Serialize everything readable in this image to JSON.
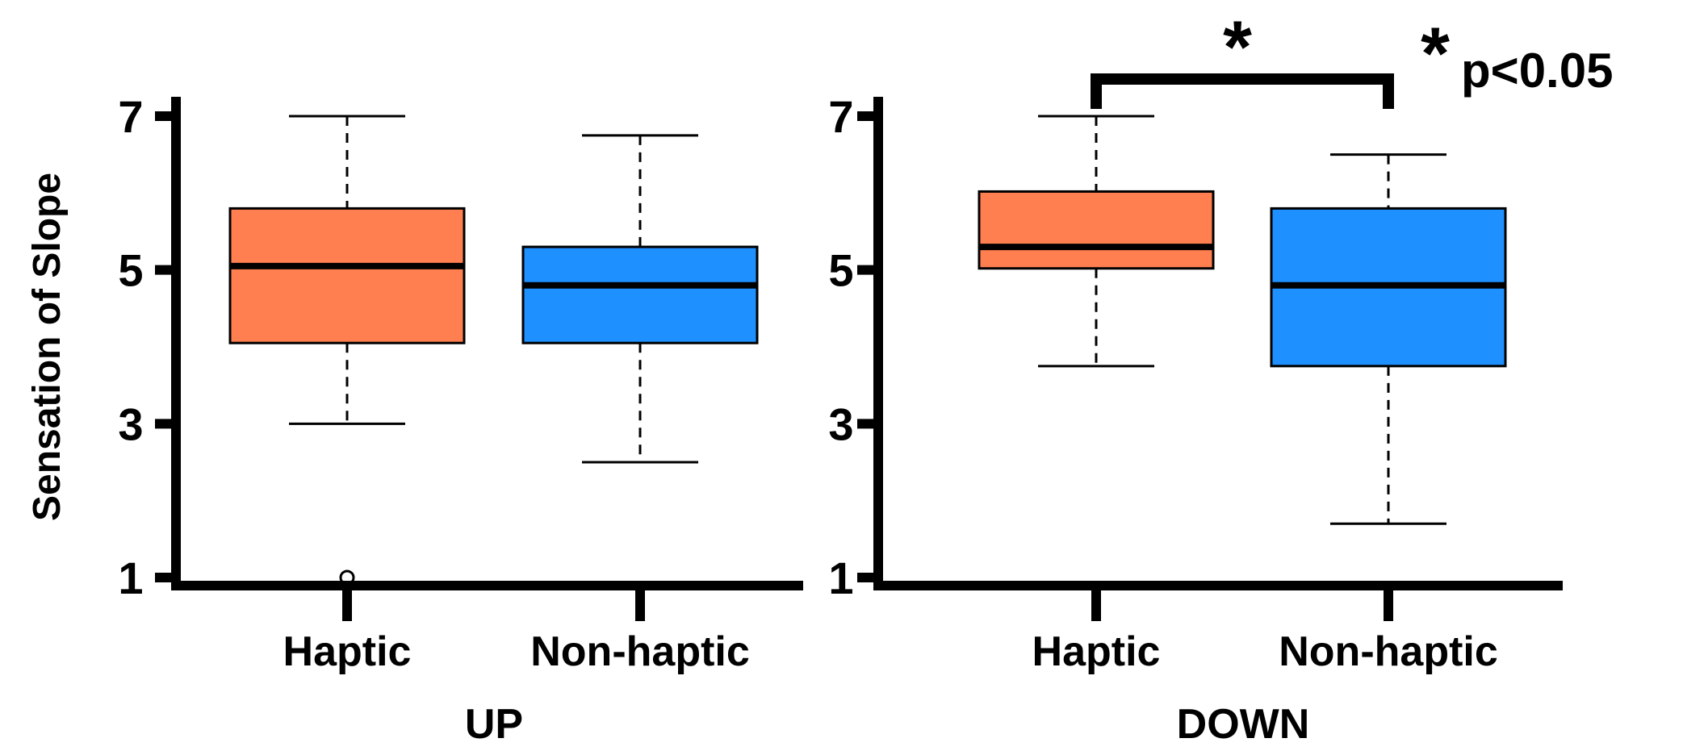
{
  "chart_data": [
    {
      "type": "boxplot",
      "title": "UP",
      "ylabel": "Sensation of Slope",
      "ylim": [
        1,
        7
      ],
      "yticks": [
        "1",
        "3",
        "5",
        "7"
      ],
      "categories": [
        "Haptic",
        "Non-haptic"
      ],
      "boxes": [
        {
          "name": "Haptic",
          "color": "#FF7F50",
          "min": 3.0,
          "q1": 4.05,
          "median": 5.05,
          "q3": 5.8,
          "max": 7.0,
          "outliers": [
            1.0
          ]
        },
        {
          "name": "Non-haptic",
          "color": "#1E90FF",
          "min": 2.5,
          "q1": 4.05,
          "median": 4.8,
          "q3": 5.3,
          "max": 6.75,
          "outliers": []
        }
      ]
    },
    {
      "type": "boxplot",
      "title": "DOWN",
      "ylabel": "",
      "ylim": [
        1,
        7
      ],
      "yticks": [
        "1",
        "3",
        "5",
        "7"
      ],
      "categories": [
        "Haptic",
        "Non-haptic"
      ],
      "boxes": [
        {
          "name": "Haptic",
          "color": "#FF7F50",
          "min": 3.75,
          "q1": 5.02,
          "median": 5.3,
          "q3": 6.02,
          "max": 7.0,
          "outliers": []
        },
        {
          "name": "Non-haptic",
          "color": "#1E90FF",
          "min": 1.7,
          "q1": 3.75,
          "median": 4.8,
          "q3": 5.8,
          "max": 6.5,
          "outliers": []
        }
      ],
      "significance": {
        "star": "*",
        "between": [
          "Haptic",
          "Non-haptic"
        ]
      }
    }
  ],
  "legend_note": {
    "star": "*",
    "text": "p<0.05"
  }
}
